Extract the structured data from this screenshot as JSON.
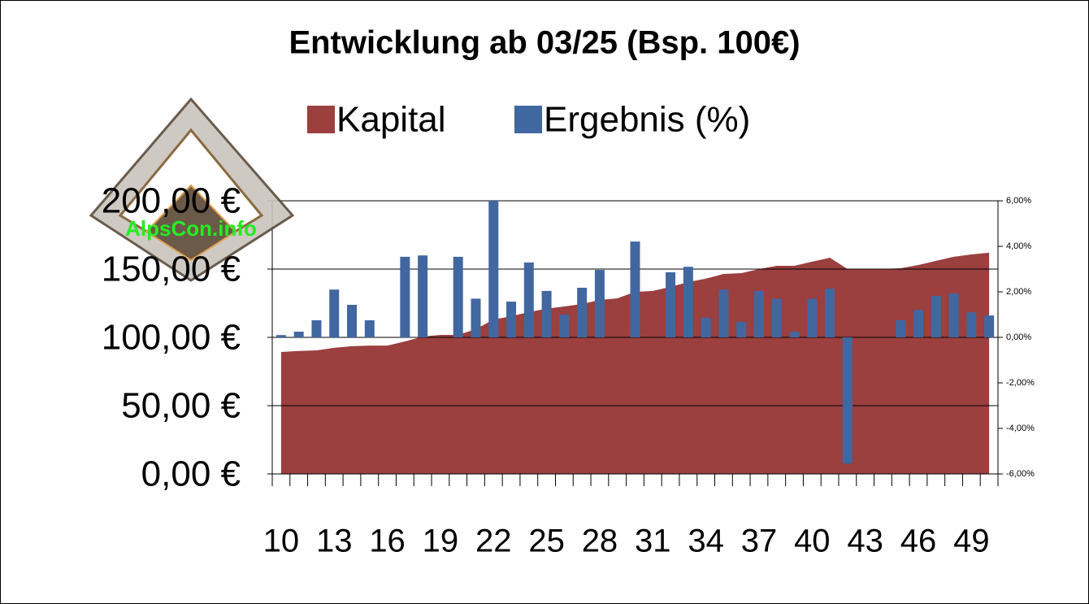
{
  "chart_data": {
    "type": "area_bar",
    "title": "Entwicklung ab 03/25 (Bsp. 100€)",
    "watermark": "AlpsCon.info",
    "categories": [
      "10",
      null,
      null,
      "13",
      null,
      null,
      "16",
      null,
      null,
      "19",
      null,
      null,
      "22",
      null,
      null,
      "25",
      null,
      null,
      "28",
      null,
      null,
      "31",
      null,
      null,
      "34",
      null,
      null,
      "37",
      null,
      null,
      "40",
      null,
      null,
      "43",
      null,
      null,
      "46",
      null,
      null,
      "49",
      null
    ],
    "series": [
      {
        "name": "Kapital",
        "color": "#9b3f3f",
        "values": [
          89.3,
          90,
          90.5,
          92.3,
          93.5,
          94,
          94,
          97,
          100.6,
          101.8,
          101.8,
          106,
          113,
          115.5,
          118.5,
          121,
          122.6,
          124.4,
          127.4,
          128.6,
          133.3,
          134,
          137,
          140.5,
          143,
          146.4,
          147,
          150,
          152.4,
          152.4,
          155.4,
          158.3,
          150,
          150,
          150,
          150.6,
          153,
          156,
          159,
          160.7,
          162
        ]
      },
      {
        "name": "Ergebnis (%)",
        "color": "#4167a0",
        "axis": "y2",
        "values": [
          0.1,
          0.25,
          0.75,
          2.1,
          1.43,
          0.75,
          0,
          3.54,
          3.6,
          0,
          3.54,
          1.7,
          6.0,
          1.57,
          3.29,
          2.04,
          1.0,
          2.18,
          2.96,
          0,
          4.21,
          0,
          2.86,
          3.1,
          0.86,
          2.1,
          0.68,
          2.04,
          1.7,
          0.25,
          1.7,
          2.14,
          -5.54,
          0,
          0,
          0.75,
          1.21,
          1.82,
          1.93,
          1.1,
          0.96
        ]
      }
    ],
    "ylim": [
      0,
      200
    ],
    "yticks": [
      {
        "value": 0,
        "label": "0,00 €"
      },
      {
        "value": 50,
        "label": "50,00 €"
      },
      {
        "value": 100,
        "label": "100,00 €"
      },
      {
        "value": 150,
        "label": "150,00 €"
      },
      {
        "value": 200,
        "label": "200,00 €"
      }
    ],
    "y2lim": [
      -6,
      6
    ],
    "y2ticks": [
      {
        "value": -6,
        "label": "-6,00%"
      },
      {
        "value": -4,
        "label": "-4,00%"
      },
      {
        "value": -2,
        "label": "-2,00%"
      },
      {
        "value": 0,
        "label": "0,00%"
      },
      {
        "value": 2,
        "label": "2,00%"
      },
      {
        "value": 4,
        "label": "4,00%"
      },
      {
        "value": 6,
        "label": "6,00%"
      }
    ],
    "grid": true,
    "legend": "top"
  }
}
